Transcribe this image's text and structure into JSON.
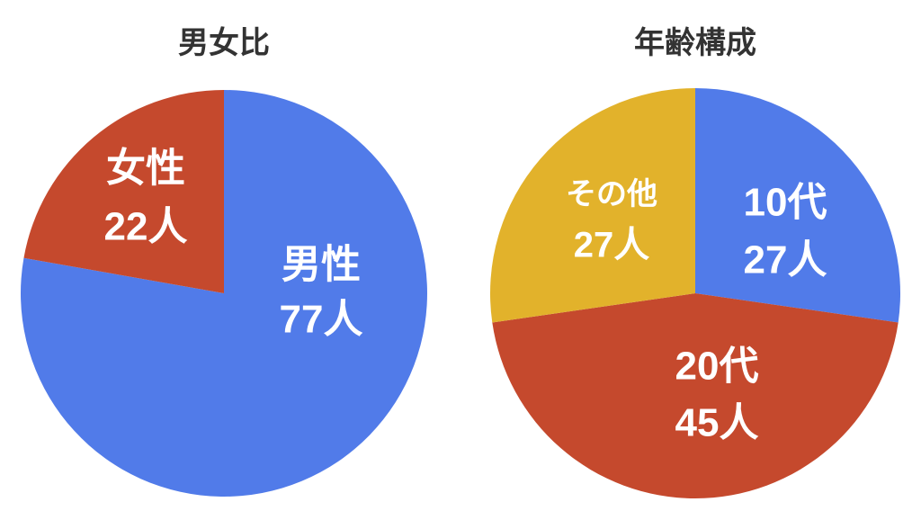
{
  "chart_data": [
    {
      "type": "pie",
      "title": "男女比",
      "categories": [
        "男性",
        "女性"
      ],
      "values": [
        77,
        22
      ],
      "value_labels": [
        "77人",
        "22人"
      ],
      "colors": [
        "#517be9",
        "#c5492d"
      ]
    },
    {
      "type": "pie",
      "title": "年齢構成",
      "categories": [
        "10代",
        "20代",
        "その他"
      ],
      "values": [
        27,
        45,
        27
      ],
      "value_labels": [
        "27人",
        "45人",
        "27人"
      ],
      "colors": [
        "#517be9",
        "#c5492d",
        "#e2b22b"
      ]
    }
  ]
}
